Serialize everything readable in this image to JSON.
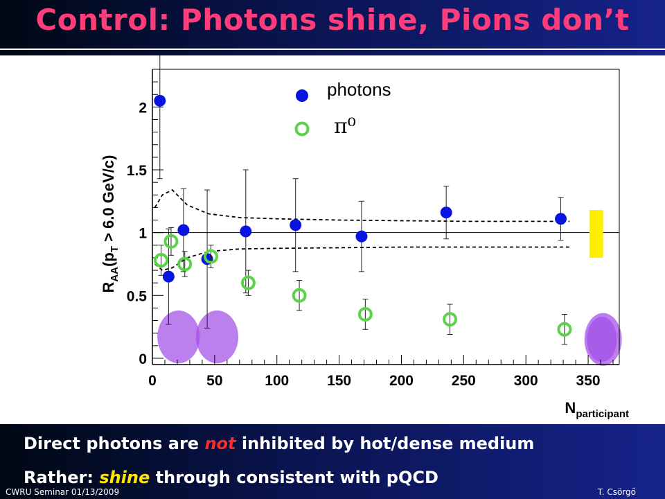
{
  "slide": {
    "title": "Control: Photons shine, Pions don’t",
    "caption_line1": {
      "before": "Direct photons are",
      "highlight": "not",
      "after": "inhibited by hot/dense medium"
    },
    "caption_line2": {
      "before": "Rather:",
      "highlight": "shine",
      "after": "through consistent with pQCD"
    },
    "footer_left": "CWRU Seminar 01/13/2009",
    "footer_right": "T. Csörgő"
  },
  "colors": {
    "title": "#ff3d7a",
    "photons": "#0a14e0",
    "pi0": "#5cd24a",
    "yellow_box": "#ffee00",
    "purple_blob": "#a24ee8"
  },
  "chart_data": {
    "type": "scatter",
    "ylabel": "R_AA(p_T > 6.0 GeV/c)",
    "ylabel_main": "R",
    "ylabel_sub": "AA",
    "ylabel_mid": "(p",
    "ylabel_sub2": "T",
    "ylabel_tail": " > 6.0 GeV/c)",
    "xlabel": "N_participant",
    "xlabel_main": "N",
    "xlabel_sub": "participant",
    "xlim": [
      0,
      375
    ],
    "ylim": [
      -0.05,
      2.3
    ],
    "x_ticks": [
      "0",
      "50",
      "100",
      "150",
      "200",
      "250",
      "300",
      "350"
    ],
    "x_tick_values": [
      0,
      50,
      100,
      150,
      200,
      250,
      300,
      350
    ],
    "y_ticks": [
      "0",
      "0.5",
      "1",
      "1.5",
      "2"
    ],
    "y_tick_values": [
      0,
      0.5,
      1,
      1.5,
      2
    ],
    "reference_line": 1.0,
    "legend": {
      "placement": "top-center",
      "entries": [
        {
          "label": "photons",
          "marker": "filled-circle"
        },
        {
          "label": "π⁰",
          "marker": "open-circle"
        }
      ]
    },
    "series": [
      {
        "name": "photons",
        "marker": "filled-circle",
        "x": [
          6,
          13,
          25,
          44,
          75,
          115,
          168,
          236,
          328
        ],
        "y": [
          2.05,
          0.65,
          1.02,
          0.79,
          1.01,
          1.06,
          0.97,
          1.16,
          1.11
        ],
        "yerr": [
          0.62,
          0.38,
          0.33,
          0.55,
          0.49,
          0.37,
          0.28,
          0.21,
          0.17
        ]
      },
      {
        "name": "π⁰",
        "marker": "open-circle",
        "x": [
          7,
          15,
          26,
          47,
          77,
          118,
          171,
          239,
          331
        ],
        "y": [
          0.78,
          0.93,
          0.75,
          0.81,
          0.6,
          0.5,
          0.35,
          0.31,
          0.23
        ],
        "yerr": [
          0.12,
          0.11,
          0.1,
          0.09,
          0.1,
          0.12,
          0.12,
          0.12,
          0.12
        ]
      }
    ],
    "band": {
      "x": [
        2,
        8,
        16,
        28,
        45,
        70,
        100,
        150,
        200,
        250,
        300,
        335
      ],
      "upper": [
        1.2,
        1.3,
        1.34,
        1.22,
        1.15,
        1.12,
        1.11,
        1.1,
        1.095,
        1.09,
        1.09,
        1.09
      ],
      "lower": [
        0.75,
        0.7,
        0.72,
        0.8,
        0.85,
        0.87,
        0.875,
        0.88,
        0.885,
        0.885,
        0.885,
        0.885
      ]
    },
    "systematic_box": {
      "x_range": [
        351,
        362
      ],
      "y_range": [
        0.8,
        1.18
      ]
    },
    "highlight_blobs": [
      {
        "x": 21,
        "y": 0.17,
        "r_x": 17,
        "r_y": 0.21
      },
      {
        "x": 52,
        "y": 0.17,
        "r_x": 17,
        "r_y": 0.21
      },
      {
        "x": 362,
        "y": 0.15,
        "r_x": 15,
        "r_y": 0.21
      },
      {
        "x": 361,
        "y": 0.15,
        "r_x": 12,
        "r_y": 0.18
      }
    ]
  }
}
